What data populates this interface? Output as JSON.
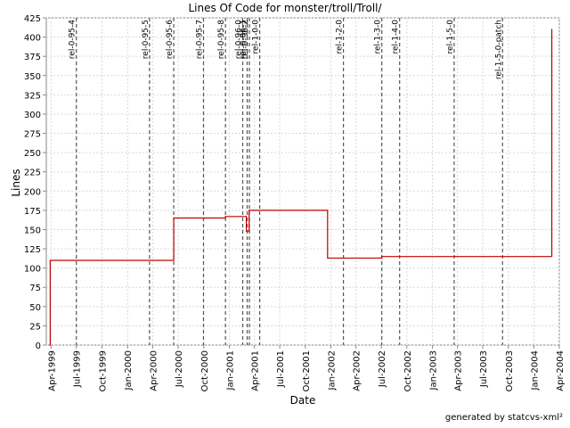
{
  "chart_data": {
    "type": "line",
    "title": "Lines Of Code for monster/troll/Troll/",
    "xlabel": "Date",
    "ylabel": "Lines",
    "ylim": [
      0,
      425
    ],
    "y_ticks": [
      0,
      25,
      50,
      75,
      100,
      125,
      150,
      175,
      200,
      225,
      250,
      275,
      300,
      325,
      350,
      375,
      400,
      425
    ],
    "x_range": [
      "1999-03-15",
      "2004-04-01"
    ],
    "x_ticks": [
      {
        "date": "1999-04-01",
        "label": "Apr-1999"
      },
      {
        "date": "1999-07-01",
        "label": "Jul-1999"
      },
      {
        "date": "1999-10-01",
        "label": "Oct-1999"
      },
      {
        "date": "2000-01-01",
        "label": "Jan-2000"
      },
      {
        "date": "2000-04-01",
        "label": "Apr-2000"
      },
      {
        "date": "2000-07-01",
        "label": "Jul-2000"
      },
      {
        "date": "2000-10-01",
        "label": "Oct-2000"
      },
      {
        "date": "2001-01-01",
        "label": "Jan-2001"
      },
      {
        "date": "2001-04-01",
        "label": "Apr-2001"
      },
      {
        "date": "2001-07-01",
        "label": "Jul-2001"
      },
      {
        "date": "2001-10-01",
        "label": "Oct-2001"
      },
      {
        "date": "2002-01-01",
        "label": "Jan-2002"
      },
      {
        "date": "2002-04-01",
        "label": "Apr-2002"
      },
      {
        "date": "2002-07-01",
        "label": "Jul-2002"
      },
      {
        "date": "2002-10-01",
        "label": "Oct-2002"
      },
      {
        "date": "2003-01-01",
        "label": "Jan-2003"
      },
      {
        "date": "2003-04-01",
        "label": "Apr-2003"
      },
      {
        "date": "2003-07-01",
        "label": "Jul-2003"
      },
      {
        "date": "2003-10-01",
        "label": "Oct-2003"
      },
      {
        "date": "2004-01-01",
        "label": "Jan-2004"
      },
      {
        "date": "2004-04-01",
        "label": "Apr-2004"
      }
    ],
    "grid": true,
    "series": [
      {
        "color": "#c00000",
        "step": true,
        "points": [
          {
            "x": "1999-03-28",
            "y": 0
          },
          {
            "x": "1999-03-29",
            "y": 110
          },
          {
            "x": "2000-06-15",
            "y": 165
          },
          {
            "x": "2000-12-18",
            "y": 167
          },
          {
            "x": "2001-03-03",
            "y": 148
          },
          {
            "x": "2001-03-13",
            "y": 175
          },
          {
            "x": "2001-12-20",
            "y": 113
          },
          {
            "x": "2002-07-03",
            "y": 115
          },
          {
            "x": "2004-03-05",
            "y": 410
          }
        ]
      }
    ],
    "annotations": [
      {
        "date": "1999-07-01",
        "label": "rel-0-95-4"
      },
      {
        "date": "2000-03-20",
        "label": "rel-0-95-5"
      },
      {
        "date": "2000-06-15",
        "label": "rel-0-95-6"
      },
      {
        "date": "2000-09-30",
        "label": "rel-0-95-7"
      },
      {
        "date": "2000-12-18",
        "label": "rel-0-95-8"
      },
      {
        "date": "2001-02-18",
        "label": "rel-0-96-0"
      },
      {
        "date": "2001-03-06",
        "label": "rel-0-96-1"
      },
      {
        "date": "2001-03-14",
        "label": "rel-0-96-2"
      },
      {
        "date": "2001-04-20",
        "label": "rel-1-0-0"
      },
      {
        "date": "2002-02-15",
        "label": "rel-1-2-0"
      },
      {
        "date": "2002-07-03",
        "label": "rel-1-3-0"
      },
      {
        "date": "2002-09-05",
        "label": "rel-1-4-0"
      },
      {
        "date": "2003-03-20",
        "label": "rel-1-5-0"
      },
      {
        "date": "2003-09-10",
        "label": "rel-1-5-0-patch"
      }
    ]
  },
  "credit": "generated by statcvs-xml²"
}
